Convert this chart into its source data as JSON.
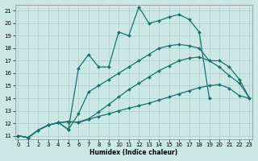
{
  "xlabel": "Humidex (Indice chaleur)",
  "bg_color": "#cce8e4",
  "grid_color": "#aacccc",
  "line_color": "#1a7070",
  "markersize": 2.0,
  "linewidth": 0.9,
  "xlim": [
    -0.3,
    23.3
  ],
  "ylim": [
    10.75,
    21.5
  ],
  "yticks": [
    11,
    12,
    13,
    14,
    15,
    16,
    17,
    18,
    19,
    20,
    21
  ],
  "xticks": [
    0,
    1,
    2,
    3,
    4,
    5,
    6,
    7,
    8,
    9,
    10,
    11,
    12,
    13,
    14,
    15,
    16,
    17,
    18,
    19,
    20,
    21,
    22,
    23
  ],
  "lines": [
    {
      "x": [
        0,
        1,
        2,
        3,
        4,
        5,
        6,
        7,
        8,
        9,
        10,
        11,
        12,
        13,
        14,
        15,
        16,
        17,
        18,
        19,
        20,
        21,
        22,
        23
      ],
      "y": [
        11.0,
        10.85,
        11.45,
        11.85,
        12.05,
        12.15,
        12.05,
        12.3,
        12.55,
        12.75,
        13.0,
        13.2,
        13.4,
        13.6,
        13.85,
        14.1,
        14.35,
        14.6,
        14.85,
        15.0,
        15.1,
        14.8,
        14.2,
        14.0
      ]
    },
    {
      "x": [
        0,
        1,
        2,
        3,
        4,
        5,
        6,
        7,
        8,
        9,
        10,
        11,
        12,
        13,
        14,
        15,
        16,
        17,
        18,
        19,
        20,
        21,
        22,
        23
      ],
      "y": [
        11.0,
        10.85,
        11.45,
        11.85,
        12.05,
        12.1,
        12.1,
        12.35,
        12.9,
        13.5,
        14.1,
        14.7,
        15.2,
        15.7,
        16.2,
        16.6,
        17.0,
        17.2,
        17.3,
        17.0,
        17.0,
        16.5,
        15.5,
        14.0
      ]
    },
    {
      "x": [
        0,
        1,
        2,
        3,
        4,
        5,
        6,
        7,
        8,
        9,
        10,
        11,
        12,
        13,
        14,
        15,
        16,
        17,
        18,
        19
      ],
      "y": [
        11.0,
        10.85,
        11.45,
        11.85,
        12.05,
        11.5,
        16.4,
        17.5,
        16.5,
        16.5,
        19.3,
        19.0,
        21.3,
        20.0,
        20.2,
        20.5,
        20.7,
        20.3,
        19.3,
        14.0
      ]
    },
    {
      "x": [
        0,
        1,
        2,
        3,
        4,
        5,
        6,
        7,
        8,
        9,
        10,
        11,
        12,
        13,
        14,
        15,
        16,
        17,
        18,
        19,
        20,
        21,
        22,
        23
      ],
      "y": [
        11.0,
        10.85,
        11.45,
        11.85,
        12.05,
        11.5,
        12.75,
        14.5,
        15.0,
        15.5,
        16.0,
        16.5,
        17.0,
        17.5,
        18.0,
        18.2,
        18.3,
        18.2,
        18.0,
        17.0,
        16.5,
        15.8,
        15.2,
        14.0
      ]
    }
  ]
}
